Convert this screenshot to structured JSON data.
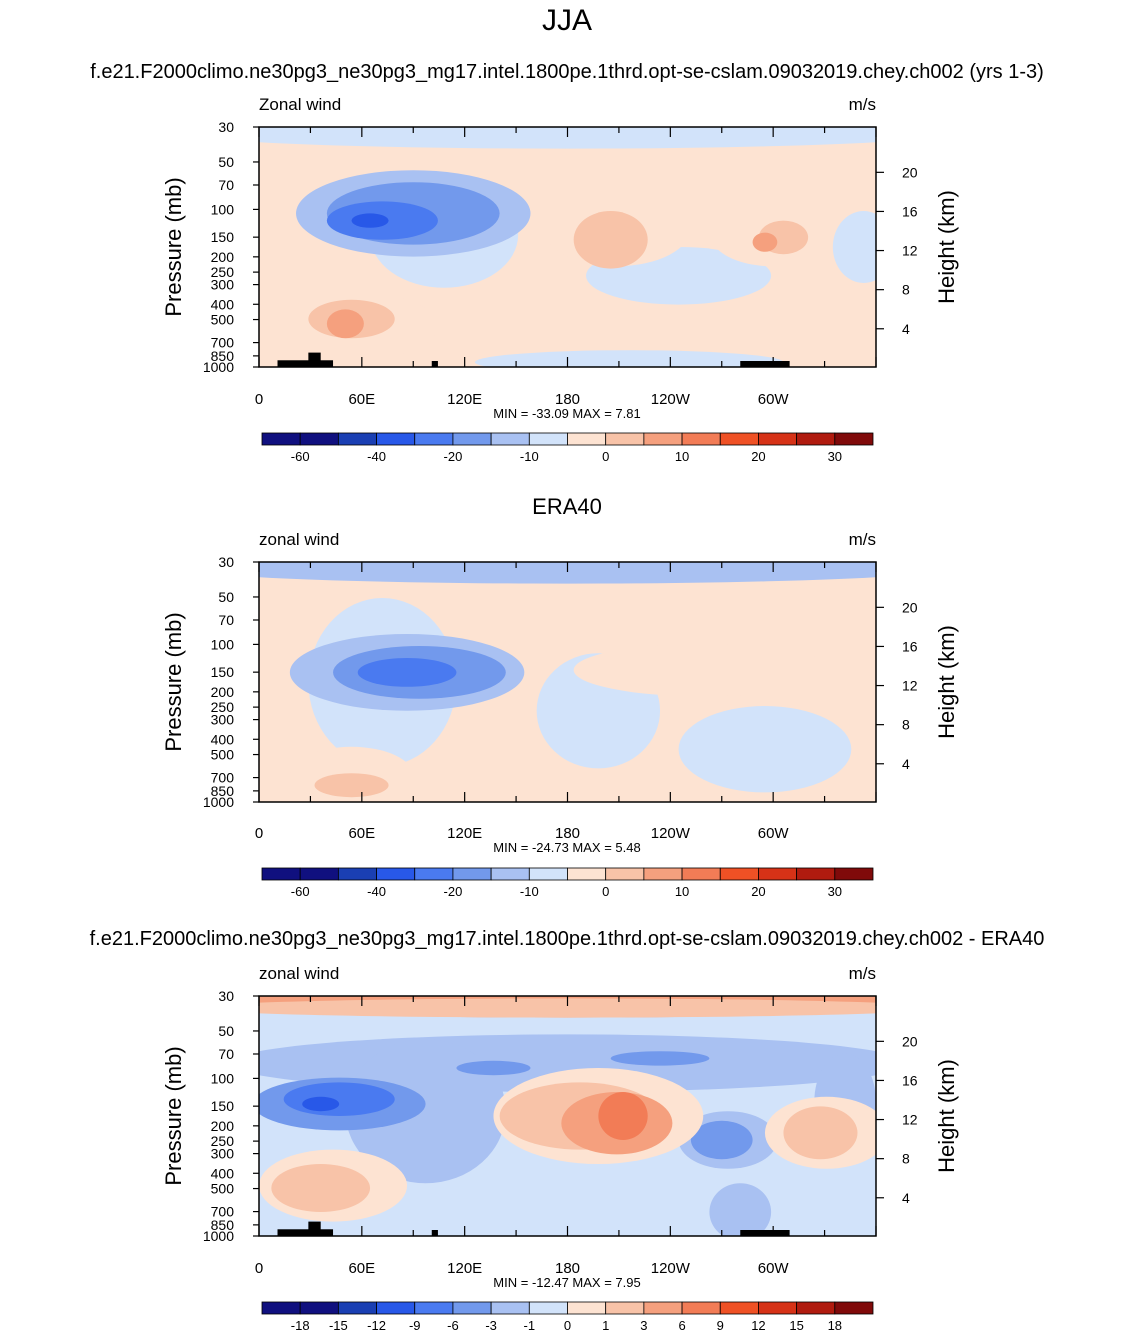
{
  "page_title": "JJA",
  "colors": {
    "full_palette": [
      "#10107f",
      "#1a3fb3",
      "#2858e8",
      "#4a7af0",
      "#7299ec",
      "#a9c1f2",
      "#d2e3fa",
      "#fde3d2",
      "#f8c3a8",
      "#f5a07e",
      "#f27c56",
      "#ef5125",
      "#d63217",
      "#b01b0f",
      "#800a0a"
    ],
    "bg_neutral": "#fde9db",
    "orography": "#000000"
  },
  "chart_data": [
    {
      "type": "heatmap",
      "title": "f.e21.F2000climo.ne30pg3_ne30pg3_mg17.intel.1800pe.1thrd.opt-se-cslam.09032019.chey.ch002 (yrs 1-3)",
      "left_label": "Zonal wind",
      "right_label": "m/s",
      "ylabel": "Pressure (mb)",
      "ylabel_right": "Height (km)",
      "x_ticks": [
        "0",
        "60E",
        "120E",
        "180",
        "120W",
        "60W"
      ],
      "y_ticks": [
        "30",
        "50",
        "70",
        "100",
        "150",
        "200",
        "250",
        "300",
        "400",
        "500",
        "700",
        "850",
        "1000"
      ],
      "y_right_ticks": [
        "20",
        "16",
        "12",
        "8",
        "4"
      ],
      "stats": "MIN = -33.09  MAX =   7.81",
      "colorbar_labels": [
        "-60",
        "-40",
        "-20",
        "-10",
        "0",
        "10",
        "20",
        "30"
      ],
      "min": -33.09,
      "max": 7.81
    },
    {
      "type": "heatmap",
      "title": "ERA40",
      "left_label": "zonal wind",
      "right_label": "m/s",
      "ylabel": "Pressure (mb)",
      "ylabel_right": "Height (km)",
      "x_ticks": [
        "0",
        "60E",
        "120E",
        "180",
        "120W",
        "60W"
      ],
      "y_ticks": [
        "30",
        "50",
        "70",
        "100",
        "150",
        "200",
        "250",
        "300",
        "400",
        "500",
        "700",
        "850",
        "1000"
      ],
      "y_right_ticks": [
        "20",
        "16",
        "12",
        "8",
        "4"
      ],
      "stats": "MIN = -24.73  MAX =   5.48",
      "colorbar_labels": [
        "-60",
        "-40",
        "-20",
        "-10",
        "0",
        "10",
        "20",
        "30"
      ],
      "min": -24.73,
      "max": 5.48
    },
    {
      "type": "heatmap",
      "title": "f.e21.F2000climo.ne30pg3_ne30pg3_mg17.intel.1800pe.1thrd.opt-se-cslam.09032019.chey.ch002 - ERA40",
      "left_label": "zonal wind",
      "right_label": "m/s",
      "ylabel": "Pressure (mb)",
      "ylabel_right": "Height (km)",
      "x_ticks": [
        "0",
        "60E",
        "120E",
        "180",
        "120W",
        "60W"
      ],
      "y_ticks": [
        "30",
        "50",
        "70",
        "100",
        "150",
        "200",
        "250",
        "300",
        "400",
        "500",
        "700",
        "850",
        "1000"
      ],
      "y_right_ticks": [
        "20",
        "16",
        "12",
        "8",
        "4"
      ],
      "stats": "MIN = -12.47  MAX =   7.95",
      "colorbar_labels": [
        "-18",
        "-15",
        "-12",
        "-9",
        "-6",
        "-3",
        "-1",
        "0",
        "1",
        "3",
        "6",
        "9",
        "12",
        "15",
        "18"
      ],
      "min": -12.47,
      "max": 7.95
    }
  ]
}
